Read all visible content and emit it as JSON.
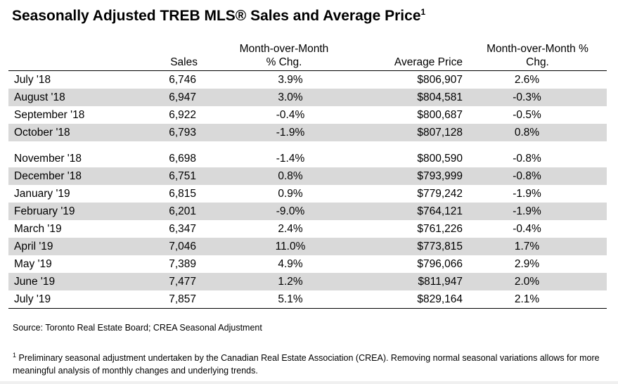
{
  "title": "Seasonally Adjusted TREB MLS® Sales and Average Price",
  "title_sup": "1",
  "table": {
    "headers": {
      "sales": "Sales",
      "mom_line1": "Month-over-Month",
      "mom_line2": "% Chg.",
      "avg": "Average Price",
      "mom2_line1": "Month-over-Month %",
      "mom2_line2": "Chg."
    },
    "rows": [
      {
        "month": "July '18",
        "sales": "6,746",
        "sales_mom": "3.9%",
        "avg_price": "$806,907",
        "price_mom": "2.6%"
      },
      {
        "month": "August '18",
        "sales": "6,947",
        "sales_mom": "3.0%",
        "avg_price": "$804,581",
        "price_mom": "-0.3%"
      },
      {
        "month": "September '18",
        "sales": "6,922",
        "sales_mom": "-0.4%",
        "avg_price": "$800,687",
        "price_mom": "-0.5%"
      },
      {
        "month": "October '18",
        "sales": "6,793",
        "sales_mom": "-1.9%",
        "avg_price": "$807,128",
        "price_mom": "0.8%"
      },
      {
        "month": "November '18",
        "sales": "6,698",
        "sales_mom": "-1.4%",
        "avg_price": "$800,590",
        "price_mom": "-0.8%"
      },
      {
        "month": "December '18",
        "sales": "6,751",
        "sales_mom": "0.8%",
        "avg_price": "$793,999",
        "price_mom": "-0.8%"
      },
      {
        "month": "January '19",
        "sales": "6,815",
        "sales_mom": "0.9%",
        "avg_price": "$779,242",
        "price_mom": "-1.9%"
      },
      {
        "month": "February '19",
        "sales": "6,201",
        "sales_mom": "-9.0%",
        "avg_price": "$764,121",
        "price_mom": "-1.9%"
      },
      {
        "month": "March '19",
        "sales": "6,347",
        "sales_mom": "2.4%",
        "avg_price": "$761,226",
        "price_mom": "-0.4%"
      },
      {
        "month": "April '19",
        "sales": "7,046",
        "sales_mom": "11.0%",
        "avg_price": "$773,815",
        "price_mom": "1.7%"
      },
      {
        "month": "May '19",
        "sales": "7,389",
        "sales_mom": "4.9%",
        "avg_price": "$796,066",
        "price_mom": "2.9%"
      },
      {
        "month": "June '19",
        "sales": "7,477",
        "sales_mom": "1.2%",
        "avg_price": "$811,947",
        "price_mom": "2.0%"
      },
      {
        "month": "July '19",
        "sales": "7,857",
        "sales_mom": "5.1%",
        "avg_price": "$829,164",
        "price_mom": "2.1%"
      }
    ]
  },
  "source": "Source: Toronto Real Estate Board; CREA Seasonal Adjustment",
  "footnote": {
    "marker": "1",
    "text": " Preliminary seasonal adjustment undertaken by the Canadian Real Estate Association (CREA).  Removing normal seasonal variations allows for more meaningful analysis of monthly changes and underlying trends."
  },
  "colors": {
    "row_shade": "#d9d9d9",
    "rule": "#000000"
  }
}
